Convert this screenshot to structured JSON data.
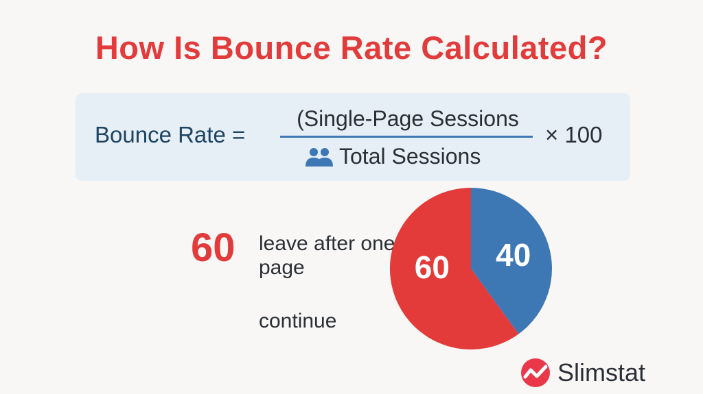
{
  "title": "How Is Bounce Rate Calculated?",
  "formula": {
    "lhs": "Bounce Rate =",
    "numerator": "(Single-Page Sessions",
    "denominator": "Total Sessions",
    "denominator_icon": "users-icon",
    "multiplier": "× 100"
  },
  "legend": {
    "bounce_value": "60",
    "bounce_text": "leave after one page",
    "continue_text": "continue"
  },
  "chart_data": {
    "type": "pie",
    "slices": [
      {
        "label": "40",
        "value": 40,
        "color": "#3d78b5"
      },
      {
        "label": "60",
        "value": 60,
        "color": "#e33a3a"
      }
    ]
  },
  "brand": {
    "name": "Slimstat",
    "color": "#e8384a"
  },
  "colors": {
    "title": "#e23b3b",
    "formula_bg": "#e6eef6"
  }
}
